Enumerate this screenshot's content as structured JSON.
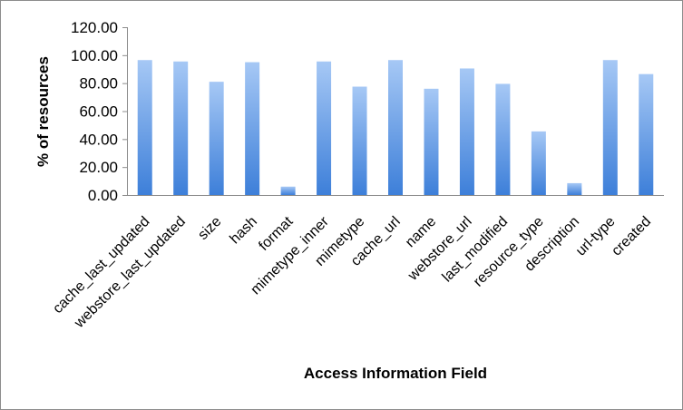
{
  "chart_data": {
    "type": "bar",
    "xlabel": "Access Information Field",
    "ylabel": "% of resources",
    "ylim": [
      0,
      120
    ],
    "yticks": [
      "0.00",
      "20.00",
      "40.00",
      "60.00",
      "80.00",
      "100.00",
      "120.00"
    ],
    "grid": false,
    "legend": "none",
    "bar_color_top": "#a6c8f5",
    "bar_color_bottom": "#3d7fd9",
    "categories": [
      "cache_last_updated",
      "webstore_last_updated",
      "size",
      "hash",
      "format",
      "mimetype_inner",
      "mimetype",
      "cache_url",
      "name",
      "webstore_url",
      "last_modified",
      "resource_type",
      "description",
      "url-type",
      "created"
    ],
    "values": [
      96.5,
      95.5,
      81,
      95,
      6,
      95.5,
      77.5,
      96.5,
      76,
      90.5,
      79.5,
      45.5,
      8.5,
      96.5,
      86.5
    ]
  }
}
